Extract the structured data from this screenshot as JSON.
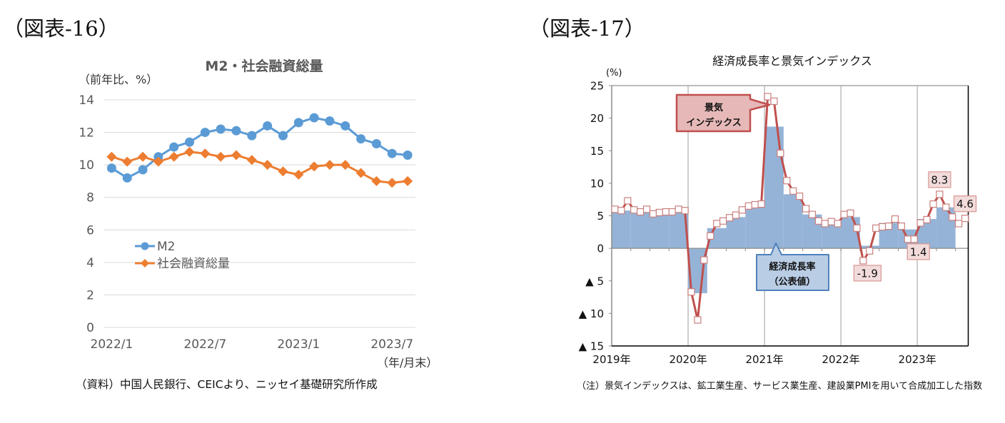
{
  "figures": [
    {
      "label": "（図表-16）"
    },
    {
      "label": "（図表-17）"
    }
  ],
  "chart_data": [
    {
      "type": "line",
      "title": "M2・社会融資総量",
      "ylabel": "（前年比、%）",
      "xlabel": "（年/月末）",
      "ylim": [
        0,
        14
      ],
      "yticks": [
        0,
        2,
        4,
        6,
        8,
        10,
        12,
        14
      ],
      "grid": "horizontal",
      "x": [
        "2022/1",
        "2022/2",
        "2022/3",
        "2022/4",
        "2022/5",
        "2022/6",
        "2022/7",
        "2022/8",
        "2022/9",
        "2022/10",
        "2022/11",
        "2022/12",
        "2023/1",
        "2023/2",
        "2023/3",
        "2023/4",
        "2023/5",
        "2023/6",
        "2023/7",
        "2023/8"
      ],
      "xtick_labels": [
        "2022/1",
        "2022/7",
        "2023/1",
        "2023/7"
      ],
      "legend_position": "left-middle",
      "series": [
        {
          "name": "M2",
          "marker": "circle",
          "color": "#5b9bd5",
          "values": [
            9.8,
            9.2,
            9.7,
            10.5,
            11.1,
            11.4,
            12.0,
            12.2,
            12.1,
            11.8,
            12.4,
            11.8,
            12.6,
            12.9,
            12.7,
            12.4,
            11.6,
            11.3,
            10.7,
            10.6
          ]
        },
        {
          "name": "社会融資総量",
          "marker": "diamond",
          "color": "#ed7d31",
          "values": [
            10.5,
            10.2,
            10.5,
            10.2,
            10.5,
            10.8,
            10.7,
            10.5,
            10.6,
            10.3,
            10.0,
            9.6,
            9.4,
            9.9,
            10.0,
            10.0,
            9.5,
            9.0,
            8.9,
            9.0
          ]
        }
      ],
      "source": "（資料）中国人民銀行、CEICより、ニッセイ基礎研究所作成"
    },
    {
      "type": "bar+line",
      "title": "経済成長率と景気インデックス",
      "ylabel": "(%)",
      "ylim": [
        -15,
        25
      ],
      "yticks": [
        {
          "value": 25,
          "label": "25"
        },
        {
          "value": 20,
          "label": "20"
        },
        {
          "value": 15,
          "label": "15"
        },
        {
          "value": 10,
          "label": "10"
        },
        {
          "value": 5,
          "label": "5"
        },
        {
          "value": 0,
          "label": "0"
        },
        {
          "value": -5,
          "label": "▲ 5"
        },
        {
          "value": -10,
          "label": "▲ 10"
        },
        {
          "value": -15,
          "label": "▲ 15"
        }
      ],
      "xtick_labels": [
        "2019年",
        "2020年",
        "2021年",
        "2022年",
        "2023年"
      ],
      "grid": "vertical-yearly",
      "series": [
        {
          "type": "bar",
          "frequency": "quarterly",
          "label_lines": [
            "経済成長率",
            "（公表値）"
          ],
          "color": "#95b3d7",
          "callout_fill": "#b9cde5",
          "callout_border": "#4f81bd",
          "periods": [
            "2019Q1",
            "2019Q2",
            "2019Q3",
            "2019Q4",
            "2020Q1",
            "2020Q2",
            "2020Q3",
            "2020Q4",
            "2021Q1",
            "2021Q2",
            "2021Q3",
            "2021Q4",
            "2022Q1",
            "2022Q2",
            "2022Q3",
            "2022Q4",
            "2023Q1",
            "2023Q2"
          ],
          "values": [
            5.8,
            5.7,
            5.6,
            5.6,
            -6.9,
            3.1,
            4.8,
            6.4,
            18.7,
            8.3,
            5.2,
            4.3,
            4.8,
            0.4,
            3.9,
            2.9,
            4.5,
            6.3
          ]
        },
        {
          "type": "line",
          "frequency": "monthly",
          "start": "2019-01",
          "label_lines": [
            "景気",
            "インデックス"
          ],
          "color": "#c0504d",
          "marker": "square",
          "callout_fill": "#e6b9b8",
          "callout_border": "#c0504d",
          "values": [
            6.0,
            5.8,
            7.3,
            5.9,
            5.6,
            6.0,
            5.3,
            5.5,
            5.6,
            5.6,
            6.0,
            5.8,
            -6.7,
            -11.0,
            -1.8,
            1.9,
            3.8,
            4.2,
            4.7,
            5.1,
            5.9,
            6.5,
            6.7,
            6.8,
            23.3,
            22.6,
            14.6,
            10.4,
            8.8,
            8.0,
            6.1,
            5.2,
            4.2,
            3.8,
            4.1,
            3.8,
            5.2,
            5.4,
            3.1,
            -1.9,
            -0.4,
            3.1,
            3.3,
            3.4,
            4.5,
            3.4,
            1.4,
            1.4,
            3.9,
            4.4,
            6.8,
            8.3,
            6.3,
            4.8,
            3.8,
            4.6
          ]
        }
      ],
      "data_labels": [
        {
          "period": "2022-04",
          "text": "-1.9",
          "position": "below"
        },
        {
          "period": "2022-12",
          "text": "1.4",
          "position": "below"
        },
        {
          "period": "2023-04",
          "text": "8.3",
          "position": "above"
        },
        {
          "period": "2023-08",
          "text": "4.6",
          "position": "above"
        }
      ],
      "data_label_fill": "#f2dcdb",
      "data_label_border": "#d99694",
      "note": "（注）景気インデックスは、鉱工業生産、サービス業生産、建設業PMIを用いて合成加工した指数"
    }
  ]
}
